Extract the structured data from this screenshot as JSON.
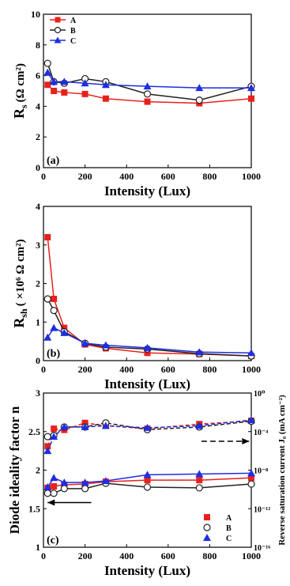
{
  "chart_data": [
    {
      "panel_label": "(a)",
      "type": "line",
      "ylabel_main": "R",
      "ylabel_sub": "s",
      "ylabel_unit": "(Ω cm²)",
      "xlabel": "Intensity (Lux)",
      "xlim": [
        0,
        1000
      ],
      "ylim": [
        0,
        10
      ],
      "x_ticks": [
        0,
        200,
        400,
        600,
        800,
        1000
      ],
      "y_ticks": [
        0,
        2,
        4,
        6,
        8,
        10
      ],
      "legend": {
        "position": "top-left",
        "entries": [
          "A",
          "B",
          "C"
        ]
      },
      "series": [
        {
          "name": "A",
          "color": "#e8211d",
          "marker": "square",
          "line": "solid",
          "x": [
            20,
            50,
            100,
            200,
            300,
            500,
            750,
            1000
          ],
          "y": [
            5.4,
            5.0,
            4.9,
            4.8,
            4.5,
            4.3,
            4.2,
            4.5
          ]
        },
        {
          "name": "B",
          "color": "#222222",
          "marker": "open-circle",
          "line": "solid",
          "x": [
            20,
            50,
            100,
            200,
            300,
            500,
            750,
            1000
          ],
          "y": [
            6.8,
            5.6,
            5.5,
            5.8,
            5.6,
            4.8,
            4.4,
            5.3
          ]
        },
        {
          "name": "C",
          "color": "#1f2ee0",
          "marker": "triangle",
          "line": "solid",
          "x": [
            20,
            50,
            100,
            200,
            300,
            500,
            750,
            1000
          ],
          "y": [
            6.2,
            5.6,
            5.6,
            5.5,
            5.4,
            5.3,
            5.2,
            5.2
          ]
        }
      ]
    },
    {
      "panel_label": "(b)",
      "type": "line",
      "ylabel_main": "R",
      "ylabel_sub": "sh",
      "ylabel_unit": "( ×10⁶ Ω cm²)",
      "xlabel": "Intensity (Lux)",
      "xlim": [
        0,
        1000
      ],
      "ylim": [
        0,
        4
      ],
      "x_ticks": [
        0,
        200,
        400,
        600,
        800,
        1000
      ],
      "y_ticks": [
        0,
        1,
        2,
        3,
        4
      ],
      "series": [
        {
          "name": "A",
          "color": "#e8211d",
          "marker": "square",
          "line": "solid",
          "x": [
            20,
            50,
            100,
            200,
            300,
            500,
            750,
            1000
          ],
          "y": [
            3.2,
            1.6,
            0.85,
            0.42,
            0.32,
            0.2,
            0.17,
            0.12
          ]
        },
        {
          "name": "B",
          "color": "#222222",
          "marker": "open-circle",
          "line": "solid",
          "x": [
            20,
            50,
            100,
            200,
            300,
            500,
            750,
            1000
          ],
          "y": [
            1.6,
            1.3,
            0.75,
            0.45,
            0.35,
            0.3,
            0.18,
            0.12
          ]
        },
        {
          "name": "C",
          "color": "#1f2ee0",
          "marker": "triangle",
          "line": "solid",
          "x": [
            20,
            50,
            100,
            200,
            300,
            500,
            750,
            1000
          ],
          "y": [
            0.6,
            0.85,
            0.72,
            0.45,
            0.4,
            0.33,
            0.22,
            0.2
          ]
        }
      ]
    },
    {
      "panel_label": "(c)",
      "type": "line",
      "ylabel": "Diode ideality factor n",
      "ylabel_right": "Reverse saturation current J₀ (mA cm⁻²)",
      "xlabel": "Intensity (Lux)",
      "xlim": [
        0,
        1000
      ],
      "ylim": [
        1.0,
        3.0
      ],
      "y_ticks": [
        1.0,
        1.5,
        2.0,
        2.5,
        3.0
      ],
      "x_ticks": [
        0,
        200,
        400,
        600,
        800,
        1000
      ],
      "y2_scale": "log",
      "y2lim": [
        1e-16,
        1
      ],
      "y2_ticks": [
        {
          "value": 1e-16,
          "label": "10⁻¹⁶"
        },
        {
          "value": 1e-12,
          "label": "10⁻¹²"
        },
        {
          "value": 1e-08,
          "label": "10⁻⁸"
        },
        {
          "value": 0.0001,
          "label": "10⁻⁴"
        },
        {
          "value": 1,
          "label": "10⁰"
        }
      ],
      "legend": {
        "position": "bottom-right",
        "entries": [
          "A",
          "B",
          "C"
        ]
      },
      "series": [
        {
          "name": "A",
          "axis": "left",
          "color": "#e8211d",
          "marker": "square",
          "line": "solid",
          "x": [
            20,
            50,
            100,
            200,
            300,
            500,
            750,
            1000
          ],
          "y": [
            1.77,
            1.79,
            1.81,
            1.82,
            1.85,
            1.87,
            1.87,
            1.9
          ]
        },
        {
          "name": "B",
          "axis": "left",
          "color": "#222222",
          "marker": "open-circle",
          "line": "solid",
          "x": [
            20,
            50,
            100,
            200,
            300,
            500,
            750,
            1000
          ],
          "y": [
            1.7,
            1.7,
            1.76,
            1.76,
            1.83,
            1.78,
            1.77,
            1.82
          ]
        },
        {
          "name": "C",
          "axis": "left",
          "color": "#1f2ee0",
          "marker": "triangle",
          "line": "solid",
          "x": [
            20,
            50,
            100,
            200,
            300,
            500,
            750,
            1000
          ],
          "y": [
            1.78,
            1.9,
            1.84,
            1.84,
            1.86,
            1.94,
            1.95,
            1.96
          ]
        },
        {
          "name": "A",
          "axis": "right",
          "color": "#e8211d",
          "marker": "square",
          "line": "dashed",
          "x": [
            20,
            50,
            100,
            200,
            300,
            500,
            750,
            1000
          ],
          "y": [
            3e-06,
            0.0002,
            0.00015,
            0.0008,
            0.0004,
            0.0002,
            0.0006,
            0.0013
          ]
        },
        {
          "name": "B",
          "axis": "right",
          "color": "#222222",
          "marker": "open-circle",
          "line": "dashed",
          "x": [
            20,
            50,
            100,
            200,
            300,
            500,
            750,
            1000
          ],
          "y": [
            3e-05,
            4e-05,
            0.0003,
            0.0003,
            0.0008,
            0.00016,
            0.0003,
            0.0012
          ]
        },
        {
          "name": "C",
          "axis": "right",
          "color": "#1f2ee0",
          "marker": "triangle",
          "line": "dashed",
          "x": [
            20,
            50,
            100,
            200,
            300,
            500,
            750,
            1000
          ],
          "y": [
            1e-06,
            3e-05,
            0.0003,
            0.0003,
            0.0004,
            0.00025,
            0.0004,
            0.0016
          ]
        }
      ],
      "annotations": [
        {
          "type": "arrow",
          "direction": "left",
          "style": "solid",
          "from": [
            230,
            1.58
          ],
          "to": [
            20,
            1.58
          ],
          "axis": "left"
        },
        {
          "type": "arrow",
          "direction": "right",
          "style": "dashed",
          "from": [
            760,
            1e-05
          ],
          "to": [
            990,
            1e-05
          ],
          "axis": "right"
        }
      ]
    }
  ]
}
